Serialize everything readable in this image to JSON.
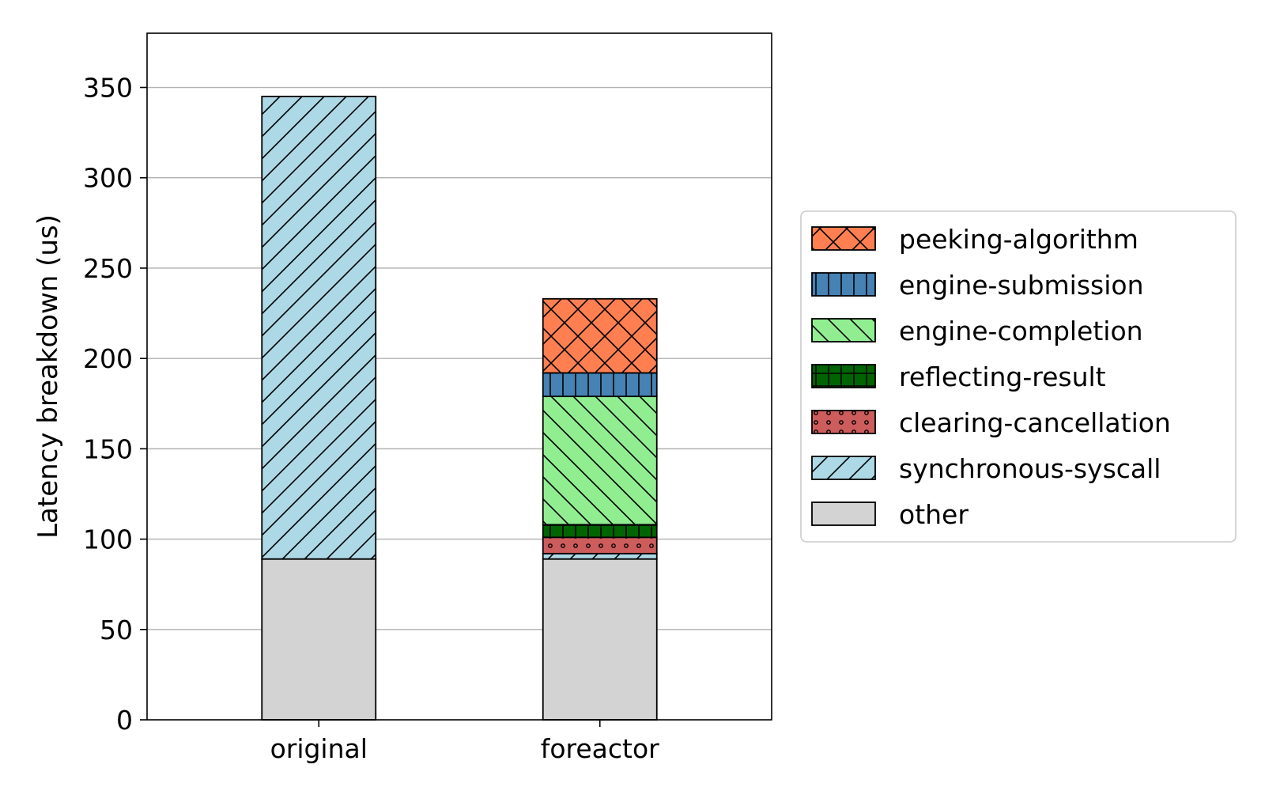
{
  "chart_data": {
    "type": "bar",
    "stacked": true,
    "categories": [
      "original",
      "foreactor"
    ],
    "ylabel": "Latency breakdown (us)",
    "xlabel": "",
    "ylim": [
      0,
      380
    ],
    "yticks": [
      0,
      50,
      100,
      150,
      200,
      250,
      300,
      350
    ],
    "grid": "horizontal",
    "legend_position": "right",
    "series": [
      {
        "name": "other",
        "values": [
          89,
          89
        ],
        "color": "#d3d3d3",
        "hatch": "none"
      },
      {
        "name": "synchronous-syscall",
        "values": [
          256,
          3
        ],
        "color": "#add8e6",
        "hatch": "diagonal-forward"
      },
      {
        "name": "clearing-cancellation",
        "values": [
          0,
          9
        ],
        "color": "#cd5c5c",
        "hatch": "dots"
      },
      {
        "name": "reflecting-result",
        "values": [
          0,
          7
        ],
        "color": "#006400",
        "hatch": "grid"
      },
      {
        "name": "engine-completion",
        "values": [
          0,
          71
        ],
        "color": "#90ee90",
        "hatch": "diagonal-back"
      },
      {
        "name": "engine-submission",
        "values": [
          0,
          13
        ],
        "color": "#4682b4",
        "hatch": "vertical"
      },
      {
        "name": "peeking-algorithm",
        "values": [
          0,
          41
        ],
        "color": "#ff7f50",
        "hatch": "crosshatch"
      }
    ],
    "legend_order": [
      "peeking-algorithm",
      "engine-submission",
      "engine-completion",
      "reflecting-result",
      "clearing-cancellation",
      "synchronous-syscall",
      "other"
    ]
  }
}
